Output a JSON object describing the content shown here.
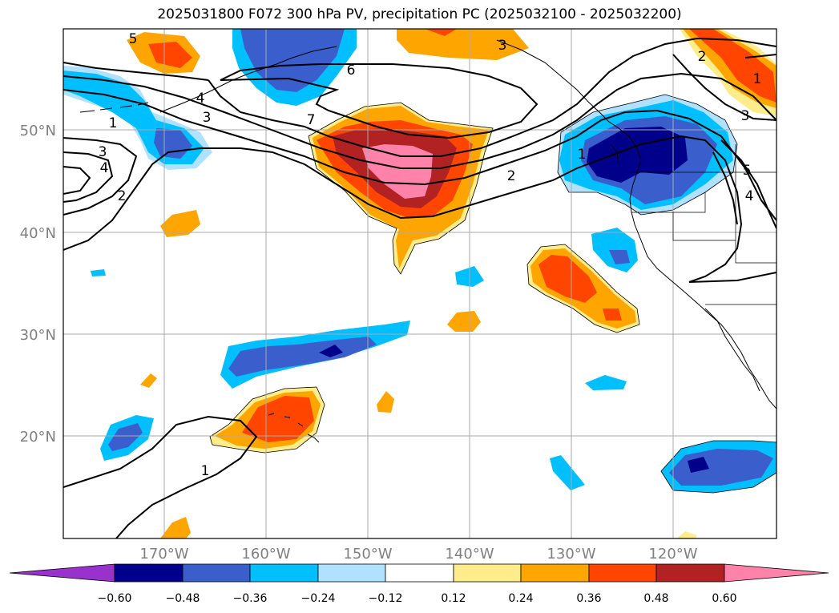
{
  "title": "2025031800 F072 300 hPa PV, precipitation PC (2025032100 - 2025032200)",
  "map": {
    "lat_labels": [
      "50°N",
      "40°N",
      "30°N",
      "20°N"
    ],
    "lon_labels": [
      "170°W",
      "160°W",
      "150°W",
      "140°W",
      "130°W",
      "120°W"
    ],
    "grid_color": "#aaaaaa",
    "label_color": "#808080"
  },
  "contour_labels": [
    "6",
    "7",
    "5",
    "4",
    "3",
    "1",
    "3",
    "4",
    "2",
    "2",
    "1",
    "3",
    "4",
    "5",
    "2",
    "1",
    "3",
    "1"
  ],
  "colorbar": {
    "tick_labels": [
      "−0.60",
      "−0.48",
      "−0.36",
      "−0.24",
      "−0.12",
      "0.12",
      "0.24",
      "0.36",
      "0.48",
      "0.60"
    ],
    "colors": [
      "#9932cc",
      "#00008b",
      "#3a5fcd",
      "#00bfff",
      "#b0e2ff",
      "#ffffff",
      "#ffec8b",
      "#ffa500",
      "#ff4500",
      "#b22222",
      "#ff82ab"
    ]
  }
}
